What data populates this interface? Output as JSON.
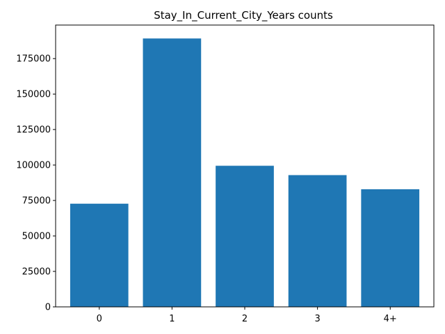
{
  "chart_data": {
    "type": "bar",
    "title": "Stay_In_Current_City_Years counts",
    "xlabel": "",
    "ylabel": "",
    "categories": [
      "0",
      "1",
      "2",
      "3",
      "4+"
    ],
    "values": [
      72725,
      189192,
      99459,
      92875,
      82889
    ],
    "ylim": [
      0,
      198652
    ],
    "yticks": [
      0,
      25000,
      50000,
      75000,
      100000,
      125000,
      150000,
      175000
    ],
    "grid": false,
    "legend": "none",
    "bar_color": "#1f77b4"
  }
}
